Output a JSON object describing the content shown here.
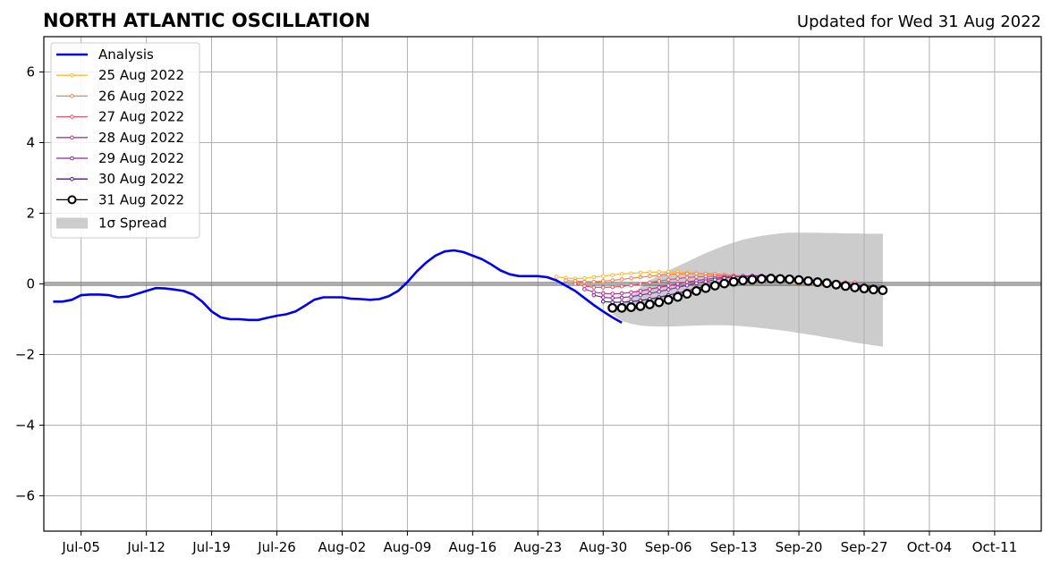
{
  "chart_data": {
    "type": "line",
    "title": "NORTH ATLANTIC OSCILLATION",
    "subtitle": "Updated for Wed 31 Aug 2022",
    "xlabel": "",
    "ylabel": "",
    "x_range": [
      "2022-07-01",
      "2022-10-16"
    ],
    "ylim": [
      -7,
      7
    ],
    "x_ticks": [
      {
        "date": "2022-07-05",
        "label": "Jul-05"
      },
      {
        "date": "2022-07-12",
        "label": "Jul-12"
      },
      {
        "date": "2022-07-19",
        "label": "Jul-19"
      },
      {
        "date": "2022-07-26",
        "label": "Jul-26"
      },
      {
        "date": "2022-08-02",
        "label": "Aug-02"
      },
      {
        "date": "2022-08-09",
        "label": "Aug-09"
      },
      {
        "date": "2022-08-16",
        "label": "Aug-16"
      },
      {
        "date": "2022-08-23",
        "label": "Aug-23"
      },
      {
        "date": "2022-08-30",
        "label": "Aug-30"
      },
      {
        "date": "2022-09-06",
        "label": "Sep-06"
      },
      {
        "date": "2022-09-13",
        "label": "Sep-13"
      },
      {
        "date": "2022-09-20",
        "label": "Sep-20"
      },
      {
        "date": "2022-09-27",
        "label": "Sep-27"
      },
      {
        "date": "2022-10-04",
        "label": "Oct-04"
      },
      {
        "date": "2022-10-11",
        "label": "Oct-11"
      }
    ],
    "y_ticks": [
      {
        "value": -6,
        "label": "−6"
      },
      {
        "value": -4,
        "label": "−4"
      },
      {
        "value": -2,
        "label": "−2"
      },
      {
        "value": 0,
        "label": "0"
      },
      {
        "value": 2,
        "label": "2"
      },
      {
        "value": 4,
        "label": "4"
      },
      {
        "value": 6,
        "label": "6"
      }
    ],
    "grid": true,
    "legend_position": "top-left",
    "zero_line": true,
    "analysis": {
      "name": "Analysis",
      "color": "#0000ee",
      "start": "2022-07-02",
      "values": [
        -0.5,
        -0.5,
        -0.45,
        -0.32,
        -0.3,
        -0.3,
        -0.32,
        -0.38,
        -0.36,
        -0.28,
        -0.2,
        -0.12,
        -0.13,
        -0.16,
        -0.2,
        -0.3,
        -0.5,
        -0.78,
        -0.95,
        -1.0,
        -1.0,
        -1.02,
        -1.02,
        -0.96,
        -0.9,
        -0.86,
        -0.78,
        -0.62,
        -0.45,
        -0.38,
        -0.38,
        -0.38,
        -0.42,
        -0.43,
        -0.45,
        -0.43,
        -0.35,
        -0.2,
        0.05,
        0.35,
        0.6,
        0.8,
        0.92,
        0.95,
        0.9,
        0.8,
        0.7,
        0.55,
        0.38,
        0.27,
        0.22,
        0.22,
        0.22,
        0.19,
        0.1,
        -0.05,
        -0.2,
        -0.4,
        -0.6,
        -0.78,
        -0.95,
        -1.1
      ]
    },
    "forecasts": [
      {
        "name": "25 Aug 2022",
        "color": "#fbb934",
        "start": "2022-08-25",
        "values": [
          0.2,
          0.17,
          0.15,
          0.16,
          0.19,
          0.22,
          0.25,
          0.28,
          0.3,
          0.32,
          0.33,
          0.34,
          0.34,
          0.33,
          0.32,
          0.3,
          0.28,
          0.26,
          0.24,
          0.22,
          0.2,
          0.17,
          0.14,
          0.11,
          0.08,
          0.05,
          0.02,
          0.0,
          -0.02,
          -0.03,
          -0.03
        ]
      },
      {
        "name": "26 Aug 2022",
        "color": "#f5824a",
        "start": "2022-08-26",
        "values": [
          0.1,
          0.08,
          0.06,
          0.06,
          0.08,
          0.1,
          0.13,
          0.16,
          0.19,
          0.22,
          0.24,
          0.26,
          0.28,
          0.29,
          0.29,
          0.29,
          0.28,
          0.26,
          0.24,
          0.22,
          0.19,
          0.16,
          0.13,
          0.1,
          0.08,
          0.06,
          0.04,
          0.03,
          0.02,
          0.02,
          0.02
        ]
      },
      {
        "name": "27 Aug 2022",
        "color": "#e0586b",
        "start": "2022-08-27",
        "values": [
          0.0,
          -0.06,
          -0.1,
          -0.1,
          -0.09,
          -0.07,
          -0.04,
          0.0,
          0.04,
          0.08,
          0.12,
          0.15,
          0.18,
          0.2,
          0.21,
          0.22,
          0.22,
          0.21,
          0.2,
          0.18,
          0.16,
          0.14,
          0.12,
          0.1,
          0.08,
          0.07,
          0.06,
          0.05,
          0.04,
          0.04,
          0.04
        ]
      },
      {
        "name": "28 Aug 2022",
        "color": "#b5338a",
        "start": "2022-08-28",
        "values": [
          -0.15,
          -0.23,
          -0.27,
          -0.28,
          -0.27,
          -0.24,
          -0.2,
          -0.15,
          -0.1,
          -0.05,
          0.0,
          0.05,
          0.09,
          0.13,
          0.16,
          0.19,
          0.21,
          0.22,
          0.22,
          0.21,
          0.2,
          0.18,
          0.15,
          0.12,
          0.09,
          0.06,
          0.03,
          0.0,
          -0.02,
          -0.03,
          -0.04
        ]
      },
      {
        "name": "29 Aug 2022",
        "color": "#8a2a9e",
        "start": "2022-08-29",
        "values": [
          -0.32,
          -0.38,
          -0.4,
          -0.39,
          -0.36,
          -0.32,
          -0.27,
          -0.22,
          -0.16,
          -0.1,
          -0.04,
          0.02,
          0.07,
          0.12,
          0.16,
          0.2,
          0.22,
          0.23,
          0.23,
          0.22,
          0.2,
          0.18,
          0.15,
          0.12,
          0.09,
          0.06,
          0.03,
          0.0,
          -0.03,
          -0.05,
          -0.07
        ]
      },
      {
        "name": "30 Aug 2022",
        "color": "#4b1a8c",
        "start": "2022-08-30",
        "values": [
          -0.5,
          -0.52,
          -0.52,
          -0.5,
          -0.47,
          -0.43,
          -0.38,
          -0.32,
          -0.26,
          -0.2,
          -0.13,
          -0.06,
          0.0,
          0.05,
          0.1,
          0.14,
          0.17,
          0.19,
          0.2,
          0.19,
          0.17,
          0.14,
          0.11,
          0.08,
          0.05,
          0.02,
          -0.01,
          -0.04,
          -0.06,
          -0.08,
          -0.1
        ]
      },
      {
        "name": "31 Aug 2022",
        "color": "#000000",
        "start": "2022-08-31",
        "values": [
          -0.68,
          -0.68,
          -0.66,
          -0.63,
          -0.58,
          -0.52,
          -0.45,
          -0.37,
          -0.28,
          -0.2,
          -0.12,
          -0.05,
          0.01,
          0.06,
          0.1,
          0.12,
          0.14,
          0.15,
          0.14,
          0.13,
          0.11,
          0.08,
          0.05,
          0.02,
          -0.02,
          -0.06,
          -0.1,
          -0.13,
          -0.16,
          -0.18
        ]
      }
    ],
    "spread": {
      "name": "1σ Spread",
      "color": "#cccccc",
      "start": "2022-08-31",
      "upper": [
        -0.85,
        -0.6,
        -0.35,
        -0.1,
        0.1,
        0.25,
        0.38,
        0.5,
        0.62,
        0.75,
        0.87,
        0.98,
        1.08,
        1.17,
        1.25,
        1.31,
        1.36,
        1.4,
        1.43,
        1.45,
        1.45,
        1.45,
        1.45,
        1.44,
        1.44,
        1.43,
        1.43,
        1.42,
        1.42,
        1.42
      ],
      "lower": [
        -0.85,
        -1.05,
        -1.13,
        -1.18,
        -1.2,
        -1.21,
        -1.21,
        -1.2,
        -1.19,
        -1.18,
        -1.17,
        -1.17,
        -1.17,
        -1.18,
        -1.2,
        -1.22,
        -1.25,
        -1.28,
        -1.31,
        -1.35,
        -1.39,
        -1.43,
        -1.47,
        -1.52,
        -1.56,
        -1.61,
        -1.66,
        -1.7,
        -1.74,
        -1.78
      ]
    }
  }
}
